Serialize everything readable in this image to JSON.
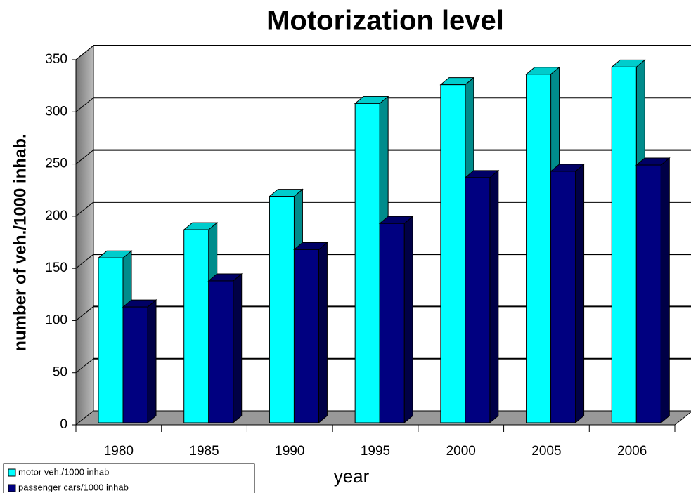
{
  "chart_data": {
    "type": "bar3d",
    "title": "Motorization level",
    "x_label": "year",
    "y_label": "number of veh./1000 inhab.",
    "categories": [
      "1980",
      "1985",
      "1990",
      "1995",
      "2000",
      "2005",
      "2006"
    ],
    "series": [
      {
        "name": "motor veh./1000 inhab",
        "color": "#00ffff",
        "values": [
          160,
          187,
          219,
          308,
          326,
          336,
          343
        ]
      },
      {
        "name": "passenger cars/1000 inhab",
        "color": "#000080",
        "values": [
          113,
          138,
          168,
          193,
          237,
          243,
          249
        ]
      }
    ],
    "ylim": [
      0,
      350
    ],
    "yticks": [
      0,
      50,
      100,
      150,
      200,
      250,
      300,
      350
    ],
    "grid": true,
    "legend": "bottom-left"
  }
}
